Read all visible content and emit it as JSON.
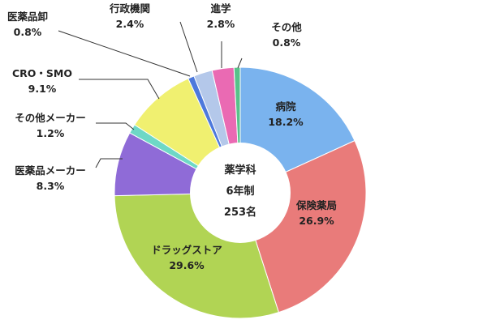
{
  "chart_data": {
    "type": "pie",
    "style": "donut",
    "center_text": [
      "薬学科",
      "6年制",
      "253名"
    ],
    "slices": [
      {
        "label": "病院",
        "value": 18.2,
        "display": "18.2%",
        "color": "#7ab3ee"
      },
      {
        "label": "保険薬局",
        "value": 26.9,
        "display": "26.9%",
        "color": "#e97b7a"
      },
      {
        "label": "ドラッグストア",
        "value": 29.6,
        "display": "29.6%",
        "color": "#b1d454"
      },
      {
        "label": "医薬品メーカー",
        "value": 8.3,
        "display": "8.3%",
        "color": "#8f6bd7"
      },
      {
        "label": "その他メーカー",
        "value": 1.2,
        "display": "1.2%",
        "color": "#6ed8c6"
      },
      {
        "label": "CRO・SMO",
        "value": 9.1,
        "display": "9.1%",
        "color": "#f0f070"
      },
      {
        "label": "医薬品卸",
        "value": 0.8,
        "display": "0.8%",
        "color": "#4d79dc"
      },
      {
        "label": "行政機関",
        "value": 2.4,
        "display": "2.4%",
        "color": "#b4c8ea"
      },
      {
        "label": "進学",
        "value": 2.8,
        "display": "2.8%",
        "color": "#ea6ab3"
      },
      {
        "label": "その他",
        "value": 0.8,
        "display": "0.8%",
        "color": "#58c28a"
      }
    ]
  }
}
